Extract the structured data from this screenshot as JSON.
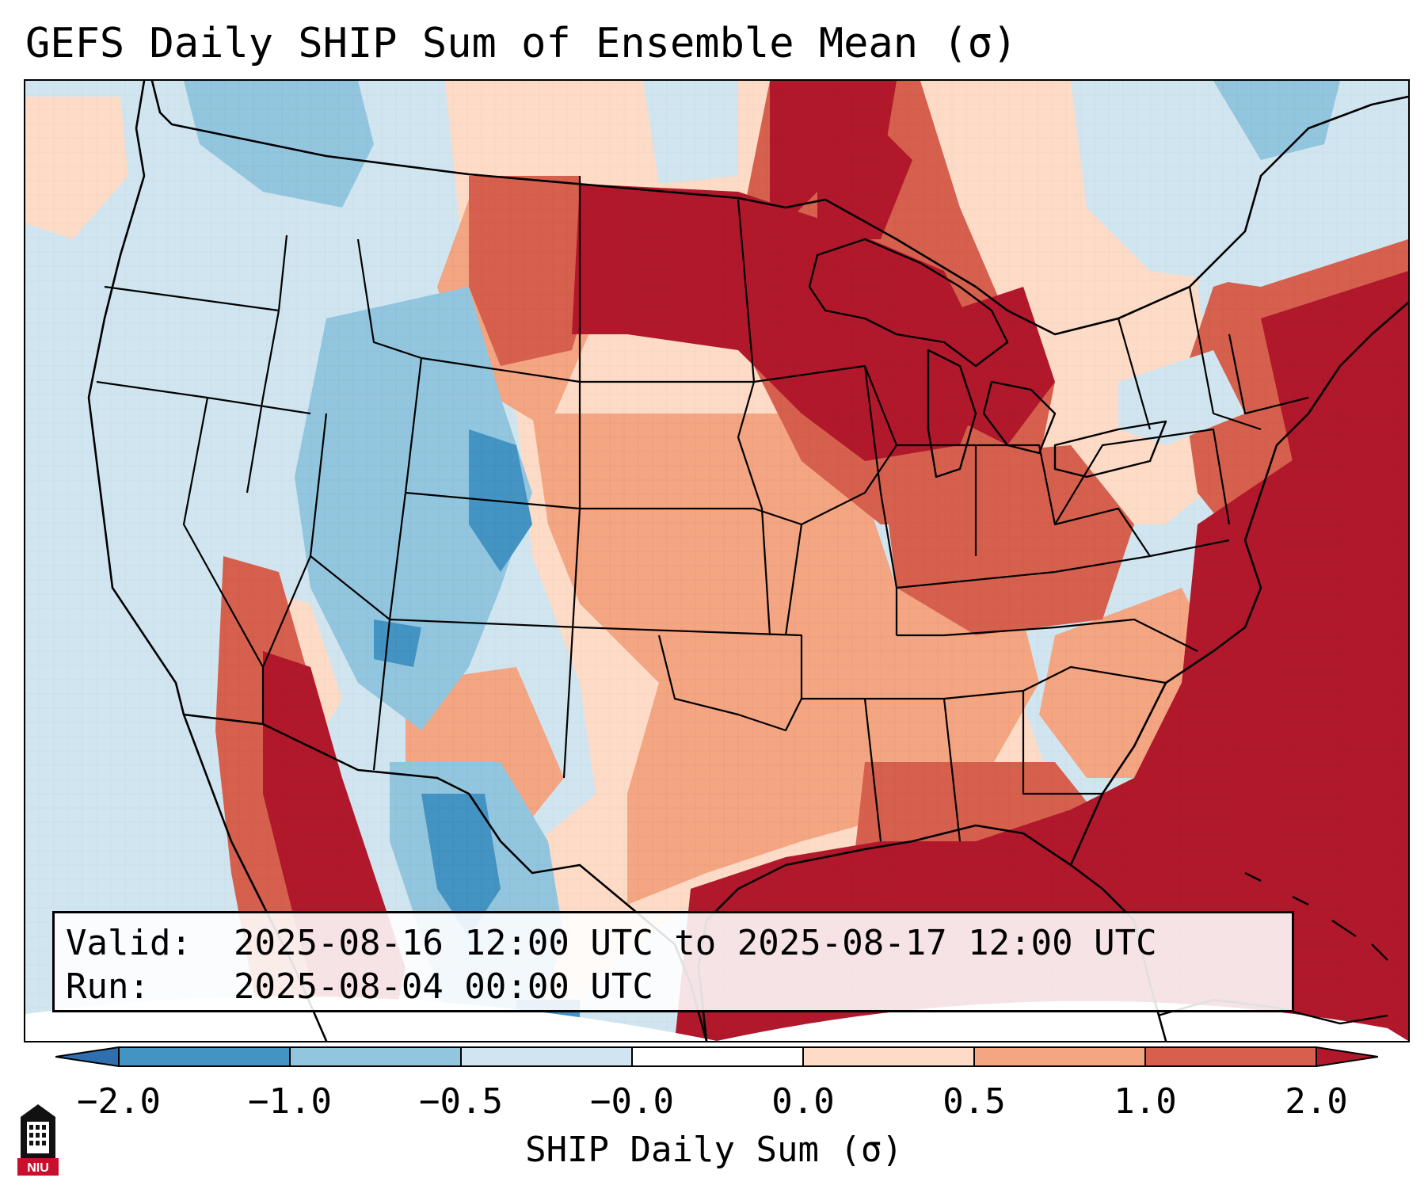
{
  "title": "GEFS Daily SHIP Sum of Ensemble Mean (σ)",
  "info": {
    "valid_label": "Valid:",
    "valid_value": "2025-08-16 12:00 UTC to 2025-08-17 12:00 UTC",
    "run_label": "Run:",
    "run_value": "2025-08-04 00:00 UTC"
  },
  "colorbar": {
    "label": "SHIP Daily Sum (σ)",
    "tick_labels": [
      "−2.0",
      "−1.0",
      "−0.5",
      "−0.0",
      "0.0",
      "0.5",
      "1.0",
      "2.0"
    ],
    "colors": {
      "under": "#2f6fb0",
      "bin1": "#4393c3",
      "bin2": "#92c5de",
      "bin3": "#d1e5f0",
      "bin4": "#fddbc7",
      "bin5": "#f4a582",
      "bin6": "#d6604d",
      "over": "#b2182b"
    },
    "extend": "both",
    "orientation": "horizontal"
  },
  "map": {
    "region": "CONUS",
    "features": [
      "state-boundaries",
      "coastlines",
      "country-borders",
      "great-lakes"
    ]
  },
  "logo": {
    "icon": "niu-tower-logo",
    "text": "NIU"
  }
}
